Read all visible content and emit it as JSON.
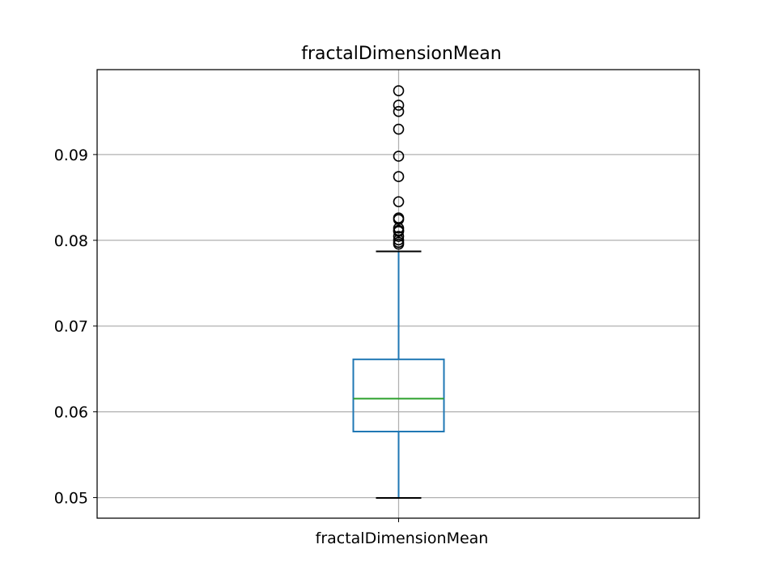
{
  "chart_data": {
    "type": "box",
    "title": "fractalDimensionMean",
    "categories": [
      "fractalDimensionMean"
    ],
    "xlabel": "",
    "ylabel": "",
    "ylim": [
      0.0476,
      0.0999
    ],
    "yticks": [
      0.05,
      0.06,
      0.07,
      0.08,
      0.09
    ],
    "ytick_labels": [
      "0.05",
      "0.06",
      "0.07",
      "0.08",
      "0.09"
    ],
    "grid": true,
    "legend": "none",
    "box": {
      "whisker_low": 0.04996,
      "q1": 0.0577,
      "median": 0.06154,
      "q3": 0.06612,
      "whisker_high": 0.07871
    },
    "outliers": [
      0.07955,
      0.07976,
      0.08004,
      0.08046,
      0.08104,
      0.08116,
      0.08142,
      0.08243,
      0.08261,
      0.0845,
      0.08743,
      0.0898,
      0.09296,
      0.09502,
      0.09575,
      0.09744
    ],
    "colors": {
      "box": "#1f77b4",
      "median": "#2ca02c",
      "caps": "#000000",
      "outlier": "#000000",
      "grid": "#b0b0b0"
    }
  }
}
